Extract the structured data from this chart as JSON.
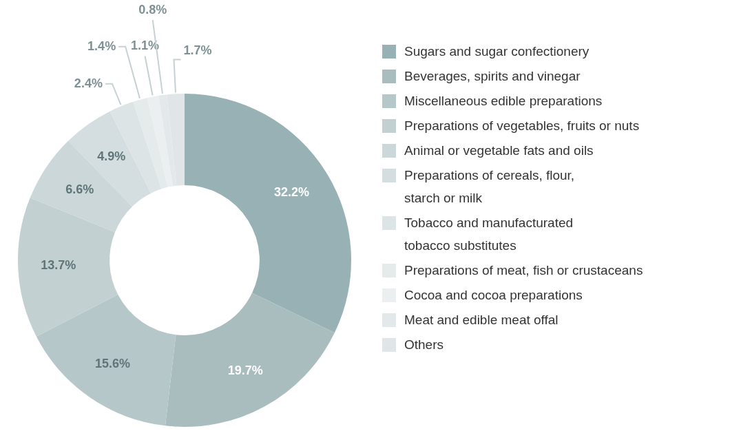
{
  "chart_data": {
    "type": "donut",
    "categories": [
      "Sugars and sugar confectionery",
      "Beverages, spirits and vinegar",
      "Miscellaneous edible preparations",
      "Preparations of vegetables, fruits or nuts",
      "Animal or vegetable fats and oils",
      "Preparations of cereals, flour, starch or milk",
      "Tobacco and manufacturated tobacco substitutes",
      "Preparations of meat, fish or crustaceans",
      "Cocoa and cocoa preparations",
      "Meat and edible meat offal",
      "Others"
    ],
    "values": [
      32.2,
      19.7,
      15.6,
      13.7,
      6.6,
      4.9,
      2.4,
      1.4,
      1.1,
      0.8,
      1.7
    ],
    "value_labels": [
      "32.2%",
      "19.7%",
      "15.6%",
      "13.7%",
      "6.6%",
      "4.9%",
      "2.4%",
      "1.4%",
      "1.1%",
      "0.8%",
      "1.7%"
    ],
    "colors": [
      "#97b1b4",
      "#a9bdbf",
      "#b6c7c9",
      "#c2d0d2",
      "#cbd7d9",
      "#d4dee0",
      "#dde4e6",
      "#e5eaeb",
      "#ebeff0",
      "#e3e9ea",
      "#e0e6e7"
    ],
    "legend": "right"
  }
}
